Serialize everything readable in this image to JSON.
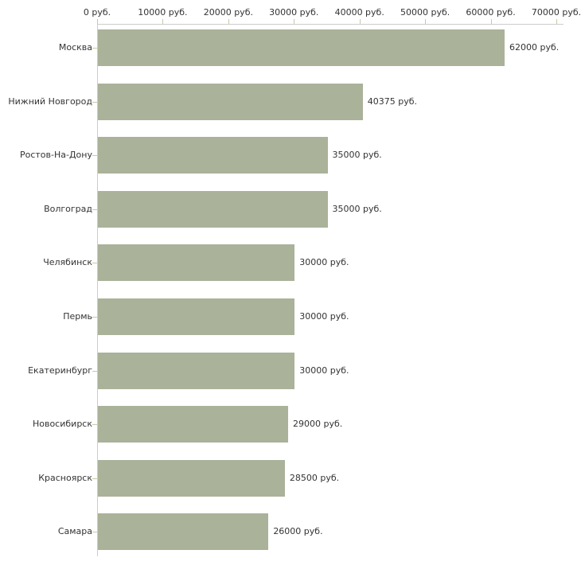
{
  "chart_data": {
    "type": "bar",
    "orientation": "horizontal",
    "title": "",
    "unit": "руб.",
    "categories": [
      "Москва",
      "Нижний Новгород",
      "Ростов-На-Дону",
      "Волгоград",
      "Челябинск",
      "Пермь",
      "Екатеринбург",
      "Новосибирск",
      "Красноярск",
      "Самара"
    ],
    "values": [
      62000,
      40375,
      35000,
      35000,
      30000,
      30000,
      30000,
      29000,
      28500,
      26000
    ],
    "value_labels": [
      "62000 руб.",
      "40375 руб.",
      "35000 руб.",
      "35000 руб.",
      "30000 руб.",
      "30000 руб.",
      "30000 руб.",
      "29000 руб.",
      "28500 руб.",
      "26000 руб."
    ],
    "x_axis": {
      "position": "top",
      "min": 0,
      "max": 70000,
      "step": 10000,
      "tick_labels": [
        "0 руб.",
        "10000 руб.",
        "20000 руб.",
        "30000 руб.",
        "40000 руб.",
        "50000 руб.",
        "60000 руб.",
        "70000 руб."
      ]
    },
    "grid": false,
    "legend": false,
    "colors": {
      "bar": "#aab29a",
      "axis_line": "#cccccc",
      "tick": "#c9c9a3",
      "text": "#333333",
      "background": "#ffffff"
    }
  }
}
